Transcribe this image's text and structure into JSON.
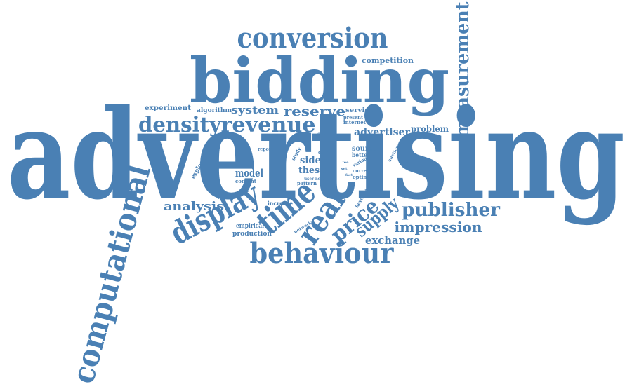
{
  "color": "#4a80b4",
  "words": [
    {
      "text": "advertising"
    },
    {
      "text": "bidding"
    },
    {
      "text": "conversion"
    },
    {
      "text": "measurement"
    },
    {
      "text": "computational"
    },
    {
      "text": "behaviour"
    },
    {
      "text": "density"
    },
    {
      "text": "revenue"
    },
    {
      "text": "publisher"
    },
    {
      "text": "impression"
    },
    {
      "text": "display"
    },
    {
      "text": "time"
    },
    {
      "text": "real"
    },
    {
      "text": "price"
    },
    {
      "text": "supply"
    },
    {
      "text": "exchange"
    },
    {
      "text": "analysis"
    },
    {
      "text": "reserve"
    },
    {
      "text": "system"
    },
    {
      "text": "advertiser"
    },
    {
      "text": "problem"
    },
    {
      "text": "competition"
    },
    {
      "text": "experiment"
    },
    {
      "text": "algorithm"
    },
    {
      "text": "service"
    },
    {
      "text": "present"
    },
    {
      "text": "internet"
    },
    {
      "text": "model"
    },
    {
      "text": "content"
    },
    {
      "text": "exploration"
    },
    {
      "text": "report"
    },
    {
      "text": "study"
    },
    {
      "text": "data"
    },
    {
      "text": "side"
    },
    {
      "text": "thesis"
    },
    {
      "text": "user"
    },
    {
      "text": "need"
    },
    {
      "text": "pattern"
    },
    {
      "text": "source"
    },
    {
      "text": "better"
    },
    {
      "text": "various"
    },
    {
      "text": "auction"
    },
    {
      "text": "current"
    },
    {
      "text": "optimal"
    },
    {
      "text": "keyword"
    },
    {
      "text": "increase"
    },
    {
      "text": "empirical"
    },
    {
      "text": "production"
    },
    {
      "text": "network"
    },
    {
      "text": "flow"
    },
    {
      "text": "tail"
    },
    {
      "text": "fee"
    },
    {
      "text": "set"
    },
    {
      "text": "fact"
    }
  ]
}
